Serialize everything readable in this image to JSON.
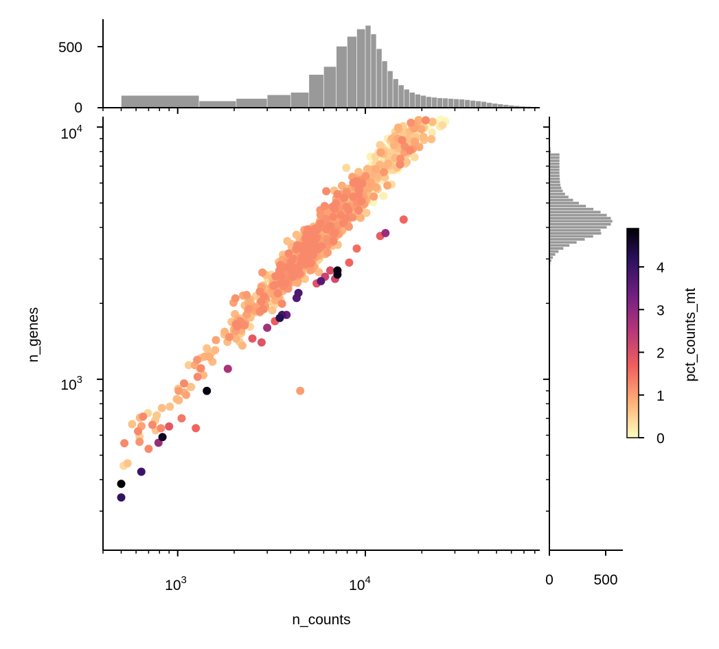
{
  "chart_data": [
    {
      "type": "scatter",
      "panel": "joint",
      "xlabel": "n_counts",
      "ylabel": "n_genes",
      "x_scale": "log",
      "y_scale": "log",
      "xlim": [
        400,
        85000
      ],
      "ylim": [
        210,
        11000
      ],
      "x_ticks": [
        {
          "base": "10",
          "exp": "3",
          "value": 1000
        },
        {
          "base": "10",
          "exp": "4",
          "value": 10000
        }
      ],
      "y_ticks": [
        {
          "base": "10",
          "exp": "3",
          "value": 1000
        },
        {
          "base": "10",
          "exp": "4",
          "value": 10000
        }
      ],
      "color_by": "pct_counts_mt",
      "colormap": "magma_r",
      "points": []
    },
    {
      "type": "bar",
      "panel": "top-marginal-histogram",
      "variable": "n_counts",
      "ylim": [
        0,
        720
      ],
      "y_ticks": [
        "0",
        "500"
      ],
      "color": "#999999",
      "bins": []
    },
    {
      "type": "bar",
      "panel": "right-marginal-histogram",
      "variable": "n_genes",
      "xlim": [
        0,
        640
      ],
      "x_ticks": [
        "0",
        "500"
      ],
      "color": "#999999",
      "bins": []
    },
    {
      "type": "heatmap",
      "panel": "colorbar",
      "label": "pct_counts_mt",
      "range": [
        0,
        4.9
      ],
      "ticks": [
        "0",
        "1",
        "2",
        "3",
        "4"
      ],
      "colormap_stops": [
        "#fcfdbf",
        "#feb078",
        "#f1605d",
        "#b73779",
        "#721f81",
        "#2c115f",
        "#000004"
      ]
    }
  ]
}
